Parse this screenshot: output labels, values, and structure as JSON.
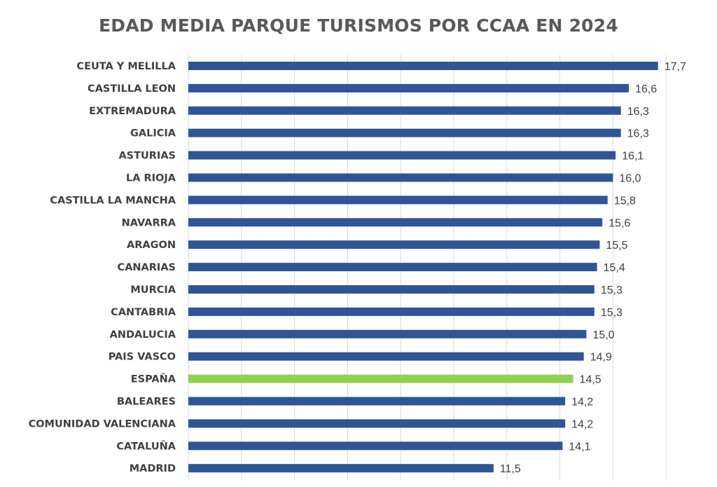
{
  "chart_data": {
    "type": "bar",
    "orientation": "horizontal",
    "title": "EDAD MEDIA PARQUE TURISMOS POR CCAA EN 2024",
    "xlabel": "",
    "ylabel": "",
    "xlim": [
      0,
      18
    ],
    "grid": true,
    "legend": "none",
    "categories": [
      "CEUTA Y MELILLA",
      "CASTILLA LEON",
      "EXTREMADURA",
      "GALICIA",
      "ASTURIAS",
      "LA RIOJA",
      "CASTILLA LA MANCHA",
      "NAVARRA",
      "ARAGON",
      "CANARIAS",
      "MURCIA",
      "CANTABRIA",
      "ANDALUCIA",
      "PAIS VASCO",
      "ESPAÑA",
      "BALEARES",
      "COMUNIDAD VALENCIANA",
      "CATALUÑA",
      "MADRID"
    ],
    "values": [
      17.7,
      16.6,
      16.3,
      16.3,
      16.1,
      16.0,
      15.8,
      15.6,
      15.5,
      15.4,
      15.3,
      15.3,
      15.0,
      14.9,
      14.5,
      14.2,
      14.2,
      14.1,
      11.5
    ],
    "value_labels": [
      "17,7",
      "16,6",
      "16,3",
      "16,3",
      "16,1",
      "16,0",
      "15,8",
      "15,6",
      "15,5",
      "15,4",
      "15,3",
      "15,3",
      "15,0",
      "14,9",
      "14,5",
      "14,2",
      "14,2",
      "14,1",
      "11,5"
    ],
    "colors": {
      "default": "#2f5597",
      "highlight": "#92d050",
      "highlight_category": "ESPAÑA"
    }
  }
}
